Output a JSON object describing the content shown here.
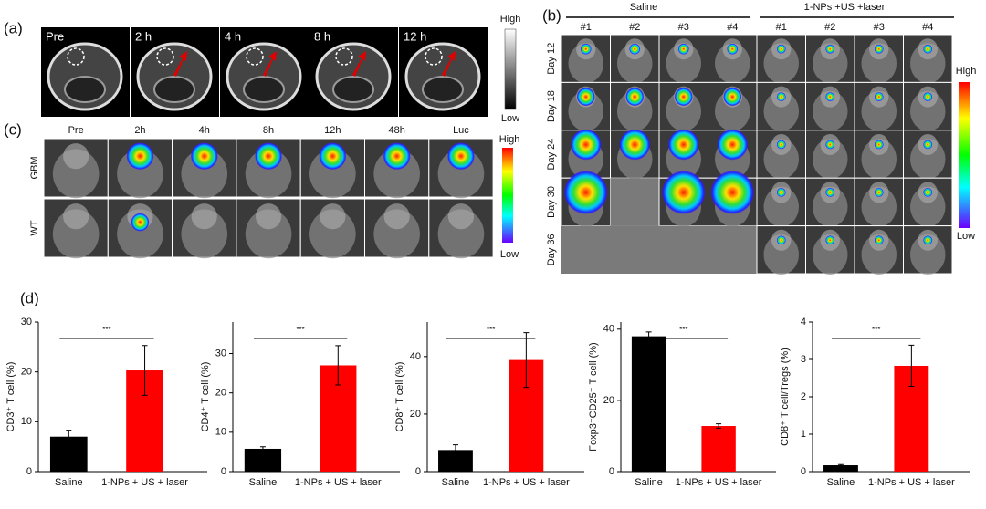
{
  "panel_a": {
    "label": "(a)",
    "timepoints": [
      "Pre",
      "2 h",
      "4 h",
      "8 h",
      "12 h"
    ],
    "scale_high": "High",
    "scale_low": "Low"
  },
  "panel_b": {
    "label": "(b)",
    "groups": [
      "Saline",
      "1-NPs +US +laser"
    ],
    "mice": [
      "#1",
      "#2",
      "#3",
      "#4"
    ],
    "days": [
      "Day 12",
      "Day 18",
      "Day 24",
      "Day 30",
      "Day 36"
    ],
    "scale_high": "High",
    "scale_low": "Low"
  },
  "panel_c": {
    "label": "(c)",
    "timepoints": [
      "Pre",
      "2h",
      "4h",
      "8h",
      "12h",
      "48h",
      "Luc"
    ],
    "rows": [
      "GBM",
      "WT"
    ],
    "scale_high": "High",
    "scale_low": "Low"
  },
  "panel_d": {
    "label": "(d)"
  },
  "chart_data": [
    {
      "type": "bar",
      "ylabel": "CD3⁺ T cell (%)",
      "categories": [
        "Saline",
        "1-NPs + US + laser"
      ],
      "values": [
        7.0,
        20.3
      ],
      "errors": [
        1.3,
        5.0
      ],
      "colors": [
        "#000000",
        "#ff0000"
      ],
      "ylim": [
        0,
        30
      ],
      "yticks": [
        0,
        10,
        20,
        30
      ],
      "annotation": "***"
    },
    {
      "type": "bar",
      "ylabel": "CD4⁺ T cell (%)",
      "categories": [
        "Saline",
        "1-NPs + US + laser"
      ],
      "values": [
        5.8,
        27.0
      ],
      "errors": [
        0.5,
        5.0
      ],
      "colors": [
        "#000000",
        "#ff0000"
      ],
      "ylim": [
        0,
        38
      ],
      "yticks": [
        0,
        10,
        20,
        30
      ],
      "annotation": "***"
    },
    {
      "type": "bar",
      "ylabel": "CD8⁺ T cell (%)",
      "categories": [
        "Saline",
        "1-NPs + US + laser"
      ],
      "values": [
        7.5,
        38.8
      ],
      "errors": [
        1.8,
        9.5
      ],
      "colors": [
        "#000000",
        "#ff0000"
      ],
      "ylim": [
        0,
        52
      ],
      "yticks": [
        0,
        20,
        40
      ],
      "annotation": "***"
    },
    {
      "type": "bar",
      "ylabel": "Foxp3⁺CD25⁺ T cell (%)",
      "categories": [
        "Saline",
        "1-NPs + US + laser"
      ],
      "values": [
        38.0,
        12.8
      ],
      "errors": [
        1.2,
        0.6
      ],
      "colors": [
        "#000000",
        "#ff0000"
      ],
      "ylim": [
        0,
        42
      ],
      "yticks": [
        0,
        20,
        40
      ],
      "annotation": "***"
    },
    {
      "type": "bar",
      "ylabel": "CD8⁺ T cell/Tregs  (%)",
      "categories": [
        "Saline",
        "1-NPs + US + laser"
      ],
      "values": [
        0.17,
        2.83
      ],
      "errors": [
        0.02,
        0.55
      ],
      "colors": [
        "#000000",
        "#ff0000"
      ],
      "ylim": [
        0,
        4
      ],
      "yticks": [
        0,
        1,
        2,
        3,
        4
      ],
      "annotation": "***"
    }
  ]
}
